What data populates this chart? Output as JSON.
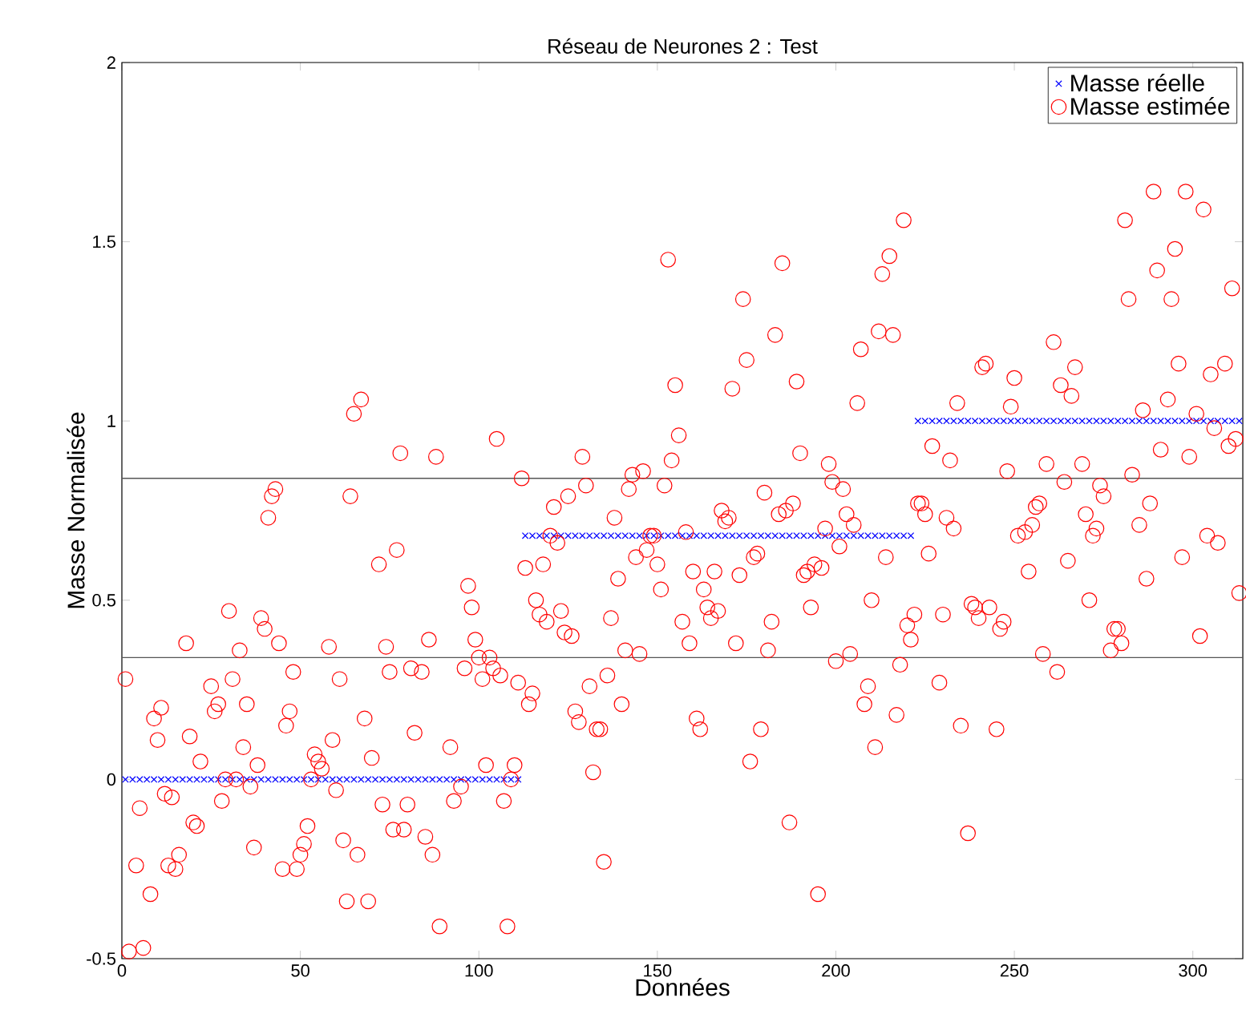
{
  "chart_data": {
    "type": "scatter",
    "title": "Réseau de Neurones 2 : Test",
    "xlabel": "Données",
    "ylabel": "Masse Normalisée",
    "xlim": [
      0,
      314
    ],
    "xticks": [
      0,
      50,
      100,
      150,
      200,
      250,
      300
    ],
    "ylim": [
      -0.5,
      2
    ],
    "yticks": [
      -0.5,
      0,
      0.5,
      1,
      1.5,
      2
    ],
    "legend": "top right",
    "ref_lines": [
      {
        "axis": "y",
        "value": 0.84,
        "color": "#555555"
      },
      {
        "axis": "y",
        "value": 0.34,
        "color": "#555555"
      }
    ],
    "series": [
      {
        "name": "Masse réelle",
        "color": "#0000ff",
        "marker": "cross",
        "x": [
          1,
          3,
          5,
          7,
          9,
          11,
          13,
          15,
          17,
          19,
          21,
          23,
          25,
          27,
          29,
          31,
          33,
          35,
          37,
          39,
          41,
          43,
          45,
          47,
          49,
          51,
          53,
          55,
          57,
          59,
          61,
          63,
          65,
          67,
          69,
          71,
          73,
          75,
          77,
          79,
          81,
          83,
          85,
          87,
          89,
          91,
          93,
          95,
          97,
          99,
          101,
          103,
          105,
          107,
          109,
          111,
          113,
          115,
          117,
          119,
          121,
          123,
          125,
          127,
          129,
          131,
          133,
          135,
          137,
          139,
          141,
          143,
          145,
          147,
          149,
          151,
          153,
          155,
          157,
          159,
          161,
          163,
          165,
          167,
          169,
          171,
          173,
          175,
          177,
          179,
          181,
          183,
          185,
          187,
          189,
          191,
          193,
          195,
          197,
          199,
          201,
          203,
          205,
          207,
          209,
          211,
          213,
          215,
          217,
          219,
          221,
          223,
          225,
          227,
          229,
          231,
          233,
          235,
          237,
          239,
          241,
          243,
          245,
          247,
          249,
          251,
          253,
          255,
          257,
          259,
          261,
          263,
          265,
          267,
          269,
          271,
          273,
          275,
          277,
          279,
          281,
          283,
          285,
          287,
          289,
          291,
          293,
          295,
          297,
          299,
          301,
          303,
          305,
          307,
          309,
          311,
          313
        ],
        "values": [
          0,
          0,
          0,
          0,
          0,
          0,
          0,
          0,
          0,
          0,
          0,
          0,
          0,
          0,
          0,
          0,
          0,
          0,
          0,
          0,
          0,
          0,
          0,
          0,
          0,
          0,
          0,
          0,
          0,
          0,
          0,
          0,
          0,
          0,
          0,
          0,
          0,
          0,
          0,
          0,
          0,
          0,
          0,
          0,
          0,
          0,
          0,
          0,
          0,
          0,
          0,
          0,
          0,
          0,
          0,
          0,
          0.68,
          0.68,
          0.68,
          0.68,
          0.68,
          0.68,
          0.68,
          0.68,
          0.68,
          0.68,
          0.68,
          0.68,
          0.68,
          0.68,
          0.68,
          0.68,
          0.68,
          0.68,
          0.68,
          0.68,
          0.68,
          0.68,
          0.68,
          0.68,
          0.68,
          0.68,
          0.68,
          0.68,
          0.68,
          0.68,
          0.68,
          0.68,
          0.68,
          0.68,
          0.68,
          0.68,
          0.68,
          0.68,
          0.68,
          0.68,
          0.68,
          0.68,
          0.68,
          0.68,
          0.68,
          0.68,
          0.68,
          0.68,
          0.68,
          0.68,
          0.68,
          0.68,
          0.68,
          0.68,
          0.68,
          1,
          1,
          1,
          1,
          1,
          1,
          1,
          1,
          1,
          1,
          1,
          1,
          1,
          1,
          1,
          1,
          1,
          1,
          1,
          1,
          1,
          1,
          1,
          1,
          1,
          1,
          1,
          1,
          1,
          1,
          1,
          1,
          1,
          1,
          1,
          1,
          1,
          1,
          1,
          1,
          1,
          1,
          1,
          1,
          1,
          1
        ]
      },
      {
        "name": "Masse estimée",
        "color": "#ff0000",
        "marker": "circle",
        "x": [
          1,
          2,
          4,
          5,
          6,
          8,
          9,
          10,
          11,
          12,
          13,
          14,
          15,
          16,
          18,
          19,
          20,
          21,
          22,
          25,
          26,
          27,
          28,
          29,
          30,
          31,
          32,
          33,
          34,
          35,
          36,
          37,
          38,
          39,
          40,
          41,
          42,
          43,
          44,
          45,
          46,
          47,
          48,
          49,
          50,
          51,
          52,
          53,
          54,
          55,
          56,
          58,
          59,
          60,
          61,
          62,
          63,
          64,
          65,
          66,
          67,
          68,
          69,
          70,
          72,
          73,
          74,
          75,
          76,
          77,
          78,
          79,
          80,
          81,
          82,
          84,
          85,
          86,
          87,
          88,
          89,
          92,
          93,
          95,
          96,
          97,
          98,
          99,
          100,
          101,
          102,
          103,
          104,
          105,
          106,
          107,
          108,
          109,
          110,
          111,
          112,
          113,
          114,
          115,
          116,
          117,
          118,
          119,
          120,
          121,
          122,
          123,
          124,
          125,
          126,
          127,
          128,
          129,
          130,
          131,
          132,
          133,
          134,
          135,
          136,
          137,
          138,
          139,
          140,
          141,
          142,
          143,
          144,
          145,
          146,
          147,
          148,
          149,
          150,
          151,
          152,
          153,
          154,
          155,
          156,
          157,
          158,
          159,
          160,
          161,
          162,
          163,
          164,
          165,
          166,
          167,
          168,
          169,
          170,
          171,
          172,
          173,
          174,
          175,
          176,
          177,
          178,
          179,
          180,
          181,
          182,
          183,
          184,
          185,
          186,
          187,
          188,
          189,
          190,
          191,
          192,
          193,
          194,
          195,
          196,
          197,
          198,
          199,
          200,
          201,
          202,
          203,
          204,
          205,
          206,
          207,
          208,
          209,
          210,
          211,
          212,
          213,
          214,
          215,
          216,
          217,
          218,
          219,
          220,
          221,
          222,
          223,
          224,
          225,
          226,
          227,
          229,
          230,
          231,
          232,
          233,
          234,
          235,
          237,
          238,
          239,
          240,
          241,
          242,
          243,
          245,
          246,
          247,
          248,
          249,
          250,
          251,
          253,
          254,
          255,
          256,
          257,
          258,
          259,
          261,
          262,
          263,
          264,
          265,
          266,
          267,
          269,
          270,
          271,
          272,
          273,
          274,
          275,
          277,
          278,
          279,
          280,
          281,
          282,
          283,
          285,
          286,
          287,
          288,
          289,
          290,
          291,
          293,
          294,
          295,
          296,
          297,
          298,
          299,
          301,
          302,
          303,
          304,
          305,
          306,
          307,
          309,
          310,
          311,
          312,
          313
        ],
        "values": [
          0.28,
          -0.48,
          -0.24,
          -0.08,
          -0.47,
          -0.32,
          0.17,
          0.11,
          0.2,
          -0.04,
          -0.24,
          -0.05,
          -0.25,
          -0.21,
          0.38,
          0.12,
          -0.12,
          -0.13,
          0.05,
          0.26,
          0.19,
          0.21,
          -0.06,
          0.0,
          0.47,
          0.28,
          0.0,
          0.36,
          0.09,
          0.21,
          -0.02,
          -0.19,
          0.04,
          0.45,
          0.42,
          0.73,
          0.79,
          0.81,
          0.38,
          -0.25,
          0.15,
          0.19,
          0.3,
          -0.25,
          -0.21,
          -0.18,
          -0.13,
          0.0,
          0.07,
          0.05,
          0.03,
          0.37,
          0.11,
          -0.03,
          0.28,
          -0.17,
          -0.34,
          0.79,
          1.02,
          -0.21,
          1.06,
          0.17,
          -0.34,
          0.06,
          0.6,
          -0.07,
          0.37,
          0.3,
          -0.14,
          0.64,
          0.91,
          -0.14,
          -0.07,
          0.31,
          0.13,
          0.3,
          -0.16,
          0.39,
          -0.21,
          0.9,
          -0.41,
          0.09,
          -0.06,
          -0.02,
          0.31,
          0.54,
          0.48,
          0.39,
          0.34,
          0.28,
          0.04,
          0.34,
          0.31,
          0.95,
          0.29,
          -0.06,
          -0.41,
          0.0,
          0.04,
          0.27,
          0.84,
          0.59,
          0.21,
          0.24,
          0.5,
          0.46,
          0.6,
          0.44,
          0.68,
          0.76,
          0.66,
          0.47,
          0.41,
          0.79,
          0.4,
          0.19,
          0.16,
          0.9,
          0.82,
          0.26,
          0.02,
          0.14,
          0.14,
          -0.23,
          0.29,
          0.45,
          0.73,
          0.56,
          0.21,
          0.36,
          0.81,
          0.85,
          0.62,
          0.35,
          0.86,
          0.64,
          0.68,
          0.68,
          0.6,
          0.53,
          0.82,
          1.45,
          0.89,
          1.1,
          0.96,
          0.44,
          0.69,
          0.38,
          0.58,
          0.17,
          0.14,
          0.53,
          0.48,
          0.45,
          0.58,
          0.47,
          0.75,
          0.72,
          0.73,
          1.09,
          0.38,
          0.57,
          1.34,
          1.17,
          0.05,
          0.62,
          0.63,
          0.14,
          0.8,
          0.36,
          0.44,
          1.24,
          0.74,
          1.44,
          0.75,
          -0.12,
          0.77,
          1.11,
          0.91,
          0.57,
          0.58,
          0.48,
          0.6,
          -0.32,
          0.59,
          0.7,
          0.88,
          0.83,
          0.33,
          0.65,
          0.81,
          0.74,
          0.35,
          0.71,
          1.05,
          1.2,
          0.21,
          0.26,
          0.5,
          0.09,
          1.25,
          1.41,
          0.62,
          1.46,
          1.24,
          0.18,
          0.32,
          1.56,
          0.43,
          0.39,
          0.46,
          0.77,
          0.77,
          0.74,
          0.63,
          0.93,
          0.27,
          0.46,
          0.73,
          0.89,
          0.7,
          1.05,
          0.15,
          -0.15,
          0.49,
          0.48,
          0.45,
          1.15,
          1.16,
          0.48,
          0.14,
          0.42,
          0.44,
          0.86,
          1.04,
          1.12,
          0.68,
          0.69,
          0.58,
          0.71,
          0.76,
          0.77,
          0.35,
          0.88,
          1.22,
          0.3,
          1.1,
          0.83,
          0.61,
          1.07,
          1.15,
          0.88,
          0.74,
          0.5,
          0.68,
          0.7,
          0.82,
          0.79,
          0.36,
          0.42,
          0.42,
          0.38,
          1.56,
          1.34,
          0.85,
          0.71,
          1.03,
          0.56,
          0.77,
          1.64,
          1.42,
          0.92,
          1.06,
          1.34,
          1.48,
          1.16,
          0.62,
          1.64,
          0.9,
          1.02,
          0.4,
          1.59,
          0.68,
          1.13,
          0.98,
          0.66,
          1.16,
          0.93,
          1.37,
          0.95,
          0.52
        ]
      }
    ]
  }
}
